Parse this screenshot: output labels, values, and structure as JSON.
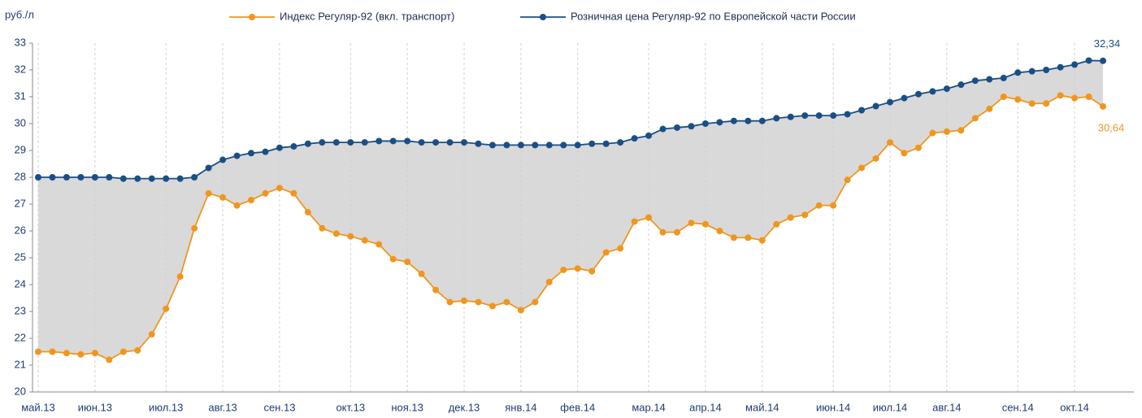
{
  "chart_data": {
    "type": "line",
    "ylabel": "руб./л",
    "legend": "top",
    "grid": true,
    "fill_between": "#d9d9d9",
    "ylim": [
      20,
      33
    ],
    "yticks": [
      20,
      21,
      22,
      23,
      24,
      25,
      26,
      27,
      28,
      29,
      30,
      31,
      32,
      33
    ],
    "categories": [
      "май.13",
      null,
      null,
      null,
      "июн.13",
      null,
      null,
      null,
      null,
      "июл.13",
      null,
      null,
      null,
      "авг.13",
      null,
      null,
      null,
      "сен.13",
      null,
      null,
      null,
      null,
      "окт.13",
      null,
      null,
      null,
      "ноя.13",
      null,
      null,
      null,
      "дек.13",
      null,
      null,
      null,
      "янв.14",
      null,
      null,
      null,
      "фев.14",
      null,
      null,
      null,
      null,
      "мар.14",
      null,
      null,
      null,
      "апр.14",
      null,
      null,
      null,
      "май.14",
      null,
      null,
      null,
      null,
      "июн.14",
      null,
      null,
      null,
      "июл.14",
      null,
      null,
      null,
      "авг.14",
      null,
      null,
      null,
      null,
      "сен.14",
      null,
      null,
      null,
      "окт.14",
      null,
      null
    ],
    "series": [
      {
        "name": "Индекс Регуляр-92  (вкл. транспорт)",
        "color": "#f0961e",
        "values": [
          21.5,
          21.5,
          21.45,
          21.4,
          21.45,
          21.2,
          21.5,
          21.55,
          22.15,
          23.1,
          24.3,
          26.1,
          27.4,
          27.25,
          26.95,
          27.15,
          27.4,
          27.6,
          27.4,
          26.7,
          26.1,
          25.9,
          25.8,
          25.65,
          25.5,
          24.95,
          24.85,
          24.4,
          23.8,
          23.35,
          23.4,
          23.35,
          23.2,
          23.35,
          23.05,
          23.35,
          24.1,
          24.55,
          24.6,
          24.5,
          25.2,
          25.35,
          26.35,
          26.5,
          25.95,
          25.95,
          26.3,
          26.25,
          26.0,
          25.75,
          25.75,
          25.65,
          26.25,
          26.5,
          26.6,
          26.95,
          26.95,
          27.9,
          28.35,
          28.7,
          29.3,
          28.9,
          29.1,
          29.65,
          29.7,
          29.75,
          30.2,
          30.55,
          31.0,
          30.9,
          30.75,
          30.75,
          31.05,
          30.95,
          31.0,
          30.64
        ],
        "value_labels": [
          null,
          null,
          null,
          null,
          null,
          null,
          null,
          null,
          null,
          null,
          null,
          null,
          null,
          null,
          null,
          null,
          null,
          null,
          null,
          null,
          null,
          null,
          null,
          null,
          null,
          null,
          null,
          null,
          null,
          null,
          null,
          null,
          null,
          null,
          null,
          null,
          null,
          null,
          null,
          null,
          null,
          null,
          null,
          null,
          null,
          null,
          null,
          null,
          null,
          null,
          null,
          null,
          null,
          null,
          null,
          null,
          null,
          null,
          null,
          null,
          null,
          null,
          null,
          null,
          null,
          null,
          null,
          null,
          null,
          null,
          null,
          null,
          null,
          null,
          null,
          "30,64"
        ]
      },
      {
        "name": "Розничная  цена Регуляр-92  по Европейской части России",
        "color": "#1a4f86",
        "values": [
          28.0,
          28.0,
          28.0,
          28.0,
          28.0,
          28.0,
          27.95,
          27.95,
          27.95,
          27.95,
          27.95,
          28.0,
          28.35,
          28.65,
          28.8,
          28.9,
          28.95,
          29.1,
          29.15,
          29.25,
          29.3,
          29.3,
          29.3,
          29.3,
          29.35,
          29.35,
          29.35,
          29.3,
          29.3,
          29.3,
          29.3,
          29.25,
          29.2,
          29.2,
          29.2,
          29.2,
          29.2,
          29.2,
          29.2,
          29.25,
          29.25,
          29.3,
          29.45,
          29.55,
          29.8,
          29.85,
          29.9,
          30.0,
          30.05,
          30.1,
          30.1,
          30.1,
          30.2,
          30.25,
          30.3,
          30.3,
          30.3,
          30.35,
          30.5,
          30.65,
          30.8,
          30.95,
          31.1,
          31.2,
          31.3,
          31.45,
          31.6,
          31.65,
          31.7,
          31.9,
          31.95,
          32.0,
          32.1,
          32.2,
          32.35,
          32.34
        ],
        "value_labels": [
          null,
          null,
          null,
          null,
          null,
          null,
          null,
          null,
          null,
          null,
          null,
          null,
          null,
          null,
          null,
          null,
          null,
          null,
          null,
          null,
          null,
          null,
          null,
          null,
          null,
          null,
          null,
          null,
          null,
          null,
          null,
          null,
          null,
          null,
          null,
          null,
          null,
          null,
          null,
          null,
          null,
          null,
          null,
          null,
          null,
          null,
          null,
          null,
          null,
          null,
          null,
          null,
          null,
          null,
          null,
          null,
          null,
          null,
          null,
          null,
          null,
          null,
          null,
          null,
          null,
          null,
          null,
          null,
          null,
          null,
          null,
          null,
          null,
          null,
          null,
          "32,34"
        ]
      }
    ]
  }
}
